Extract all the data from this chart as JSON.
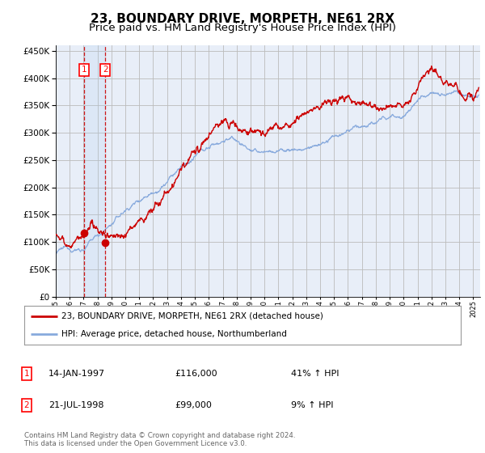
{
  "title": "23, BOUNDARY DRIVE, MORPETH, NE61 2RX",
  "subtitle": "Price paid vs. HM Land Registry's House Price Index (HPI)",
  "legend_line1": "23, BOUNDARY DRIVE, MORPETH, NE61 2RX (detached house)",
  "legend_line2": "HPI: Average price, detached house, Northumberland",
  "sale1_date": "14-JAN-1997",
  "sale1_price": 116000,
  "sale1_hpi": "41% ↑ HPI",
  "sale2_date": "21-JUL-1998",
  "sale2_price": 99000,
  "sale2_hpi": "9% ↑ HPI",
  "footnote": "Contains HM Land Registry data © Crown copyright and database right 2024.\nThis data is licensed under the Open Government Licence v3.0.",
  "background_color": "#ffffff",
  "plot_bg_color": "#e8eef8",
  "grid_color": "#bbbbbb",
  "line_color_red": "#cc0000",
  "line_color_blue": "#88aadd",
  "sale1_x_year": 1997.04,
  "sale2_x_year": 1998.56,
  "ylim": [
    0,
    460000
  ],
  "xlim_start": 1995.0,
  "xlim_end": 2025.5,
  "yticks": [
    0,
    50000,
    100000,
    150000,
    200000,
    250000,
    300000,
    350000,
    400000,
    450000
  ],
  "title_fontsize": 11,
  "subtitle_fontsize": 9.5
}
